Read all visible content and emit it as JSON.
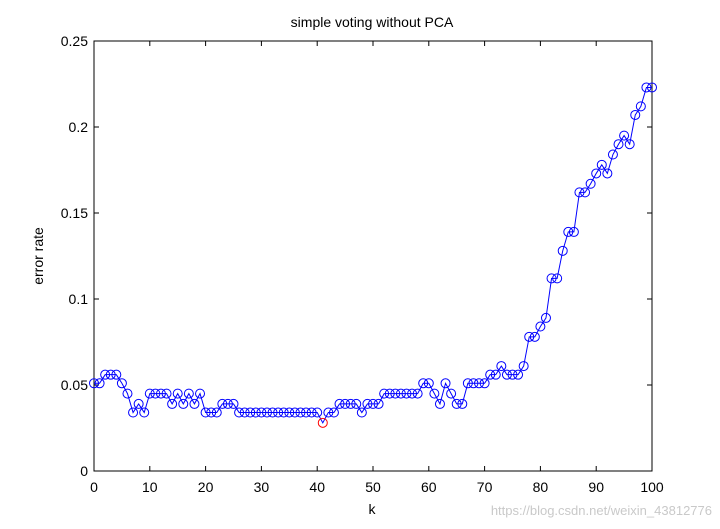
{
  "chart_data": {
    "type": "line",
    "title": "simple voting without PCA",
    "xlabel": "k",
    "ylabel": "error rate",
    "xlim": [
      0,
      100
    ],
    "ylim": [
      0,
      0.25
    ],
    "xticks": [
      0,
      10,
      20,
      30,
      40,
      50,
      60,
      70,
      80,
      90,
      100
    ],
    "yticks": [
      0,
      0.05,
      0.1,
      0.15,
      0.2,
      0.25
    ],
    "xtick_labels": [
      "0",
      "10",
      "20",
      "30",
      "40",
      "50",
      "60",
      "70",
      "80",
      "90",
      "100"
    ],
    "ytick_labels": [
      "0",
      "0.05",
      "0.1",
      "0.15",
      "0.2",
      "0.25"
    ],
    "grid": false,
    "line_color": "#0000ff",
    "marker": "circle",
    "highlight_color": "#ff0000",
    "highlight": {
      "x": 41,
      "y": 0.028
    },
    "series": [
      {
        "name": "error rate",
        "x": [
          0,
          1,
          2,
          3,
          4,
          5,
          6,
          7,
          8,
          9,
          10,
          11,
          12,
          13,
          14,
          15,
          16,
          17,
          18,
          19,
          20,
          21,
          22,
          23,
          24,
          25,
          26,
          27,
          28,
          29,
          30,
          31,
          32,
          33,
          34,
          35,
          36,
          37,
          38,
          39,
          40,
          41,
          42,
          43,
          44,
          45,
          46,
          47,
          48,
          49,
          50,
          51,
          52,
          53,
          54,
          55,
          56,
          57,
          58,
          59,
          60,
          61,
          62,
          63,
          64,
          65,
          66,
          67,
          68,
          69,
          70,
          71,
          72,
          73,
          74,
          75,
          76,
          77,
          78,
          79,
          80,
          81,
          82,
          83,
          84,
          85,
          86,
          87,
          88,
          89,
          90,
          91,
          92,
          93,
          94,
          95,
          96,
          97,
          98,
          99,
          100
        ],
        "values": [
          0.051,
          0.051,
          0.056,
          0.056,
          0.056,
          0.051,
          0.045,
          0.034,
          0.039,
          0.034,
          0.045,
          0.045,
          0.045,
          0.045,
          0.039,
          0.045,
          0.039,
          0.045,
          0.039,
          0.045,
          0.034,
          0.034,
          0.034,
          0.039,
          0.039,
          0.039,
          0.034,
          0.034,
          0.034,
          0.034,
          0.034,
          0.034,
          0.034,
          0.034,
          0.034,
          0.034,
          0.034,
          0.034,
          0.034,
          0.034,
          0.034,
          0.028,
          0.034,
          0.034,
          0.039,
          0.039,
          0.039,
          0.039,
          0.034,
          0.039,
          0.039,
          0.039,
          0.045,
          0.045,
          0.045,
          0.045,
          0.045,
          0.045,
          0.045,
          0.051,
          0.051,
          0.045,
          0.039,
          0.051,
          0.045,
          0.039,
          0.039,
          0.051,
          0.051,
          0.051,
          0.051,
          0.056,
          0.056,
          0.061,
          0.056,
          0.056,
          0.056,
          0.061,
          0.078,
          0.078,
          0.084,
          0.089,
          0.112,
          0.112,
          0.128,
          0.139,
          0.139,
          0.162,
          0.162,
          0.167,
          0.173,
          0.178,
          0.173,
          0.184,
          0.19,
          0.195,
          0.19,
          0.207,
          0.212,
          0.223,
          0.223
        ]
      }
    ]
  },
  "watermark": "https://blog.csdn.net/weixin_43812776"
}
